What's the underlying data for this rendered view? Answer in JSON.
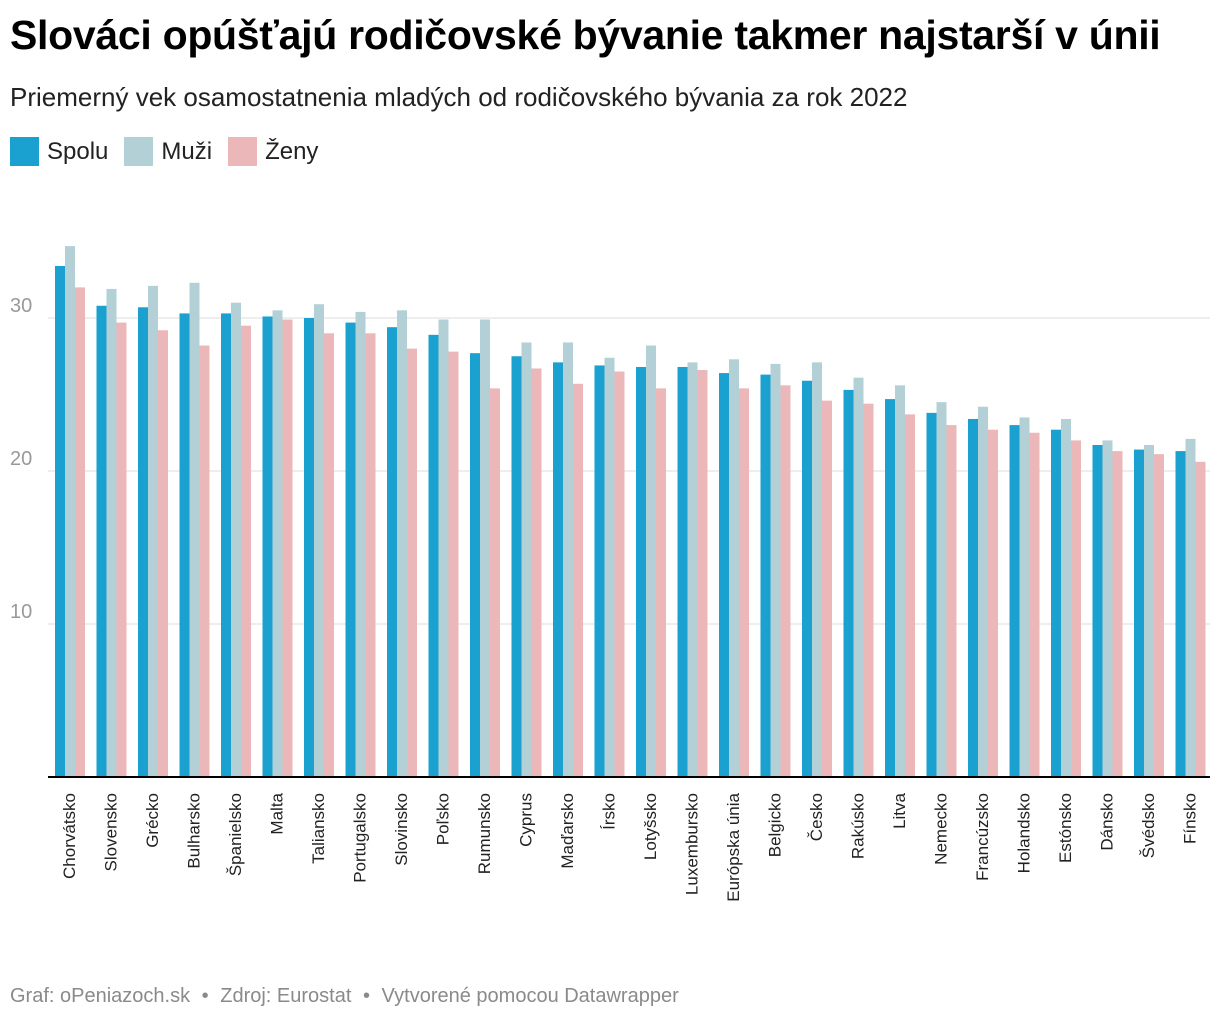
{
  "title": "Slováci opúšťajú rodičovské bývanie takmer najstarší v únii",
  "subtitle": "Priemerný vek osamostatnenia mladých od rodičovského bývania za rok 2022",
  "footer": {
    "graph": "Graf: oPeniazoch.sk",
    "sep1": "•",
    "source": "Zdroj: Eurostat",
    "sep2": "•",
    "made_with": "Vytvorené pomocou Datawrapper"
  },
  "colors": {
    "spolu": "#1aa1cf",
    "muzi": "#b3d0d7",
    "zeny": "#ecb7b8",
    "grid": "#dddddd",
    "axis": "#000000",
    "tick": "#999999"
  },
  "chart_data": {
    "type": "bar",
    "ylim": [
      0,
      35
    ],
    "yticks": [
      10,
      20,
      30
    ],
    "legend_position": "top-left",
    "categories": [
      "Chorvátsko",
      "Slovensko",
      "Grécko",
      "Bulharsko",
      "Španielsko",
      "Malta",
      "Taliansko",
      "Portugalsko",
      "Slovinsko",
      "Poľsko",
      "Rumunsko",
      "Cyprus",
      "Maďarsko",
      "Írsko",
      "Lotyšsko",
      "Luxembursko",
      "Európska únia",
      "Belgicko",
      "Česko",
      "Rakúsko",
      "Litva",
      "Nemecko",
      "Francúzsko",
      "Holandsko",
      "Estónsko",
      "Dánsko",
      "Švédsko",
      "Fínsko"
    ],
    "series": [
      {
        "name": "Spolu",
        "key": "spolu",
        "values": [
          33.4,
          30.8,
          30.7,
          30.3,
          30.3,
          30.1,
          30.0,
          29.7,
          29.4,
          28.9,
          27.7,
          27.5,
          27.1,
          26.9,
          26.8,
          26.8,
          26.4,
          26.3,
          25.9,
          25.3,
          24.7,
          23.8,
          23.4,
          23.0,
          22.7,
          21.7,
          21.4,
          21.3
        ]
      },
      {
        "name": "Muži",
        "key": "muzi",
        "values": [
          34.7,
          31.9,
          32.1,
          32.3,
          31.0,
          30.5,
          30.9,
          30.4,
          30.5,
          29.9,
          29.9,
          28.4,
          28.4,
          27.4,
          28.2,
          27.1,
          27.3,
          27.0,
          27.1,
          26.1,
          25.6,
          24.5,
          24.2,
          23.5,
          23.4,
          22.0,
          21.7,
          22.1
        ]
      },
      {
        "name": "Ženy",
        "key": "zeny",
        "values": [
          32.0,
          29.7,
          29.2,
          28.2,
          29.5,
          29.9,
          29.0,
          29.0,
          28.0,
          27.8,
          25.4,
          26.7,
          25.7,
          26.5,
          25.4,
          26.6,
          25.4,
          25.6,
          24.6,
          24.4,
          23.7,
          23.0,
          22.7,
          22.5,
          22.0,
          21.3,
          21.1,
          20.6
        ]
      }
    ]
  }
}
